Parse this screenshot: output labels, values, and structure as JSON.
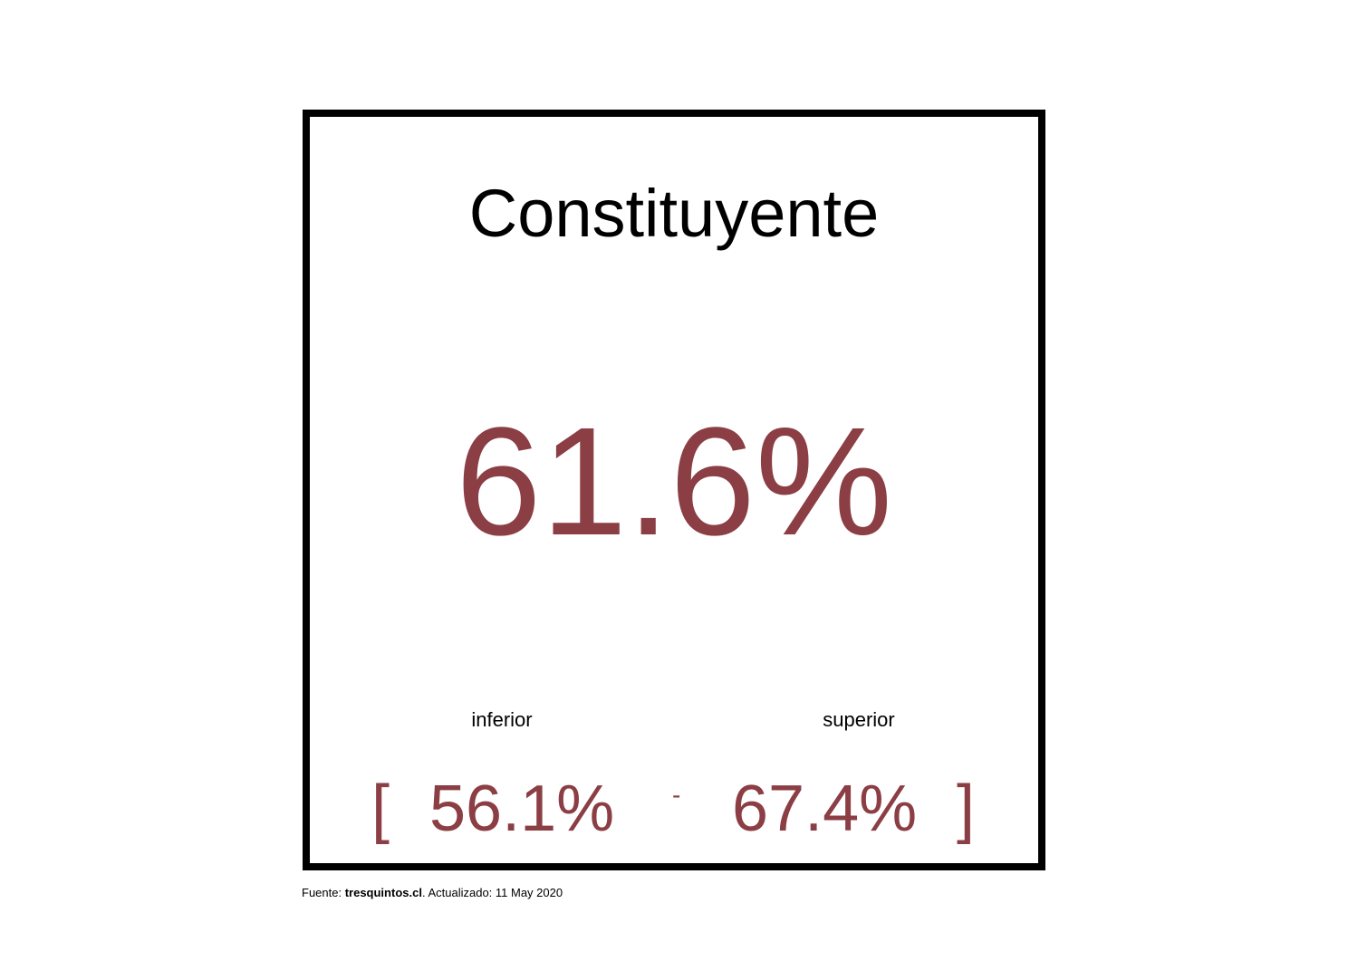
{
  "card": {
    "title": "Constituyente",
    "value": "61.6%",
    "lower_label": "inferior",
    "upper_label": "superior",
    "bracket_open": "[",
    "lower_value": "56.1%",
    "separator": "-",
    "upper_value": "67.4%",
    "bracket_close": "]"
  },
  "footer": {
    "prefix": "Fuente: ",
    "source": "tresquintos.cl",
    "suffix": ". Actualizado: 11 May 2020"
  },
  "colors": {
    "accent": "#8b3e44",
    "border": "#000000"
  }
}
